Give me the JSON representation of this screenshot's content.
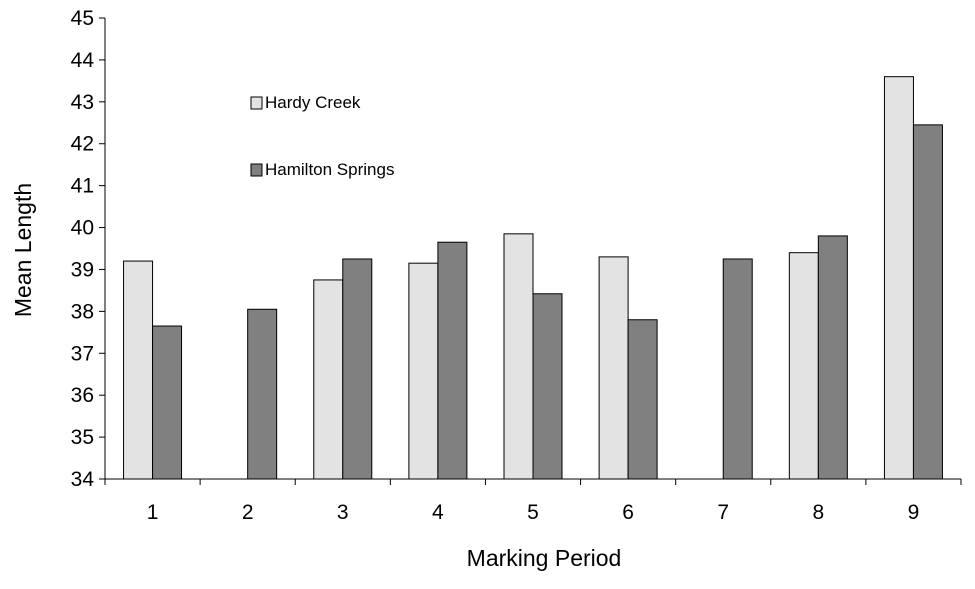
{
  "chart_data": {
    "type": "bar",
    "title": "",
    "xlabel": "Marking Period",
    "ylabel": "Mean Length",
    "categories": [
      "1",
      "2",
      "3",
      "4",
      "5",
      "6",
      "7",
      "8",
      "9"
    ],
    "ylim": [
      34,
      45
    ],
    "yticks": [
      "34",
      "35",
      "36",
      "37",
      "38",
      "39",
      "40",
      "41",
      "42",
      "43",
      "44",
      "45"
    ],
    "grid": false,
    "legend_position": "top-left inside plot",
    "series": [
      {
        "name": "Hardy Creek",
        "color": "#e3e3e3",
        "values": [
          39.2,
          null,
          38.75,
          39.15,
          39.85,
          39.3,
          null,
          39.4,
          43.6
        ]
      },
      {
        "name": "Hamilton Springs",
        "color": "#808080",
        "values": [
          37.65,
          38.05,
          39.25,
          39.65,
          38.42,
          37.8,
          39.25,
          39.8,
          42.45
        ]
      }
    ]
  }
}
